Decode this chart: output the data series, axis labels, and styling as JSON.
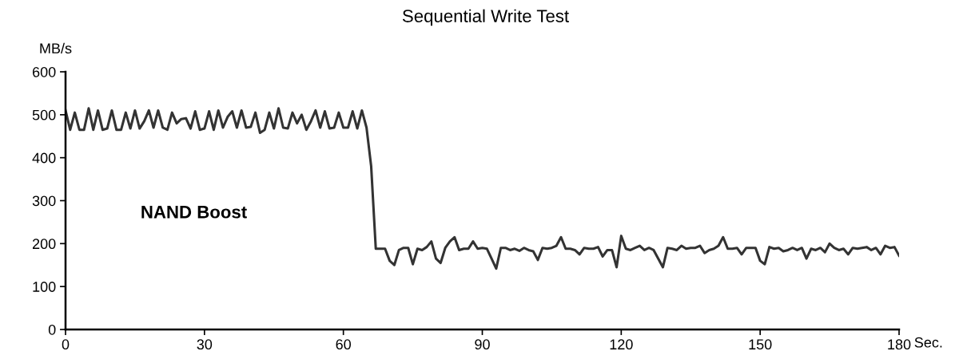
{
  "chart_data": {
    "type": "line",
    "title": "Sequential Write Test",
    "ylabel": "MB/s",
    "xlabel": "Sec.",
    "annotations": [
      "NAND Boost"
    ],
    "x": [
      0,
      1,
      2,
      3,
      4,
      5,
      6,
      7,
      8,
      9,
      10,
      11,
      12,
      13,
      14,
      15,
      16,
      17,
      18,
      19,
      20,
      21,
      22,
      23,
      24,
      25,
      26,
      27,
      28,
      29,
      30,
      31,
      32,
      33,
      34,
      35,
      36,
      37,
      38,
      39,
      40,
      41,
      42,
      43,
      44,
      45,
      46,
      47,
      48,
      49,
      50,
      51,
      52,
      53,
      54,
      55,
      56,
      57,
      58,
      59,
      60,
      61,
      62,
      63,
      64,
      65,
      66,
      67,
      68,
      69,
      70,
      71,
      72,
      73,
      74,
      75,
      76,
      77,
      78,
      79,
      80,
      81,
      82,
      83,
      84,
      85,
      86,
      87,
      88,
      89,
      90,
      91,
      92,
      93,
      94,
      95,
      96,
      97,
      98,
      99,
      100,
      101,
      102,
      103,
      104,
      105,
      106,
      107,
      108,
      109,
      110,
      111,
      112,
      113,
      114,
      115,
      116,
      117,
      118,
      119,
      120,
      121,
      122,
      123,
      124,
      125,
      126,
      127,
      128,
      129,
      130,
      131,
      132,
      133,
      134,
      135,
      136,
      137,
      138,
      139,
      140,
      141,
      142,
      143,
      144,
      145,
      146,
      147,
      148,
      149,
      150,
      151,
      152,
      153,
      154,
      155,
      156,
      157,
      158,
      159,
      160,
      161,
      162,
      163,
      164,
      165,
      166,
      167,
      168,
      169,
      170,
      171,
      172,
      173,
      174,
      175,
      176,
      177,
      178,
      179,
      180
    ],
    "series": [
      {
        "color": "#333333",
        "values": [
          510,
          465,
          505,
          465,
          465,
          515,
          465,
          510,
          465,
          468,
          510,
          465,
          465,
          505,
          468,
          510,
          468,
          485,
          510,
          470,
          510,
          470,
          465,
          505,
          480,
          490,
          492,
          468,
          508,
          465,
          468,
          508,
          465,
          510,
          470,
          495,
          508,
          470,
          510,
          470,
          472,
          505,
          458,
          465,
          505,
          468,
          515,
          470,
          468,
          505,
          480,
          500,
          465,
          485,
          510,
          470,
          508,
          468,
          470,
          505,
          470,
          470,
          508,
          468,
          510,
          470,
          380,
          188,
          188,
          188,
          160,
          150,
          185,
          190,
          190,
          152,
          188,
          185,
          192,
          205,
          165,
          155,
          190,
          205,
          215,
          185,
          188,
          188,
          205,
          188,
          190,
          188,
          165,
          142,
          190,
          190,
          185,
          188,
          183,
          190,
          185,
          182,
          162,
          190,
          188,
          190,
          195,
          215,
          188,
          188,
          185,
          175,
          190,
          188,
          188,
          192,
          170,
          185,
          185,
          145,
          218,
          188,
          185,
          190,
          195,
          185,
          190,
          185,
          165,
          145,
          190,
          188,
          185,
          195,
          188,
          190,
          190,
          195,
          178,
          185,
          188,
          195,
          215,
          188,
          188,
          190,
          175,
          190,
          190,
          190,
          160,
          152,
          192,
          188,
          190,
          182,
          185,
          190,
          185,
          190,
          165,
          188,
          185,
          190,
          180,
          200,
          190,
          185,
          188,
          175,
          190,
          188,
          190,
          192,
          185,
          190,
          175,
          195,
          190,
          192,
          172
        ]
      }
    ],
    "xlim": [
      0,
      180
    ],
    "xticks": [
      0,
      30,
      60,
      90,
      120,
      150,
      180
    ],
    "ylim": [
      0,
      600
    ],
    "yticks": [
      0,
      100,
      200,
      300,
      400,
      500,
      600
    ],
    "grid": false,
    "legend": false,
    "marker": "none",
    "line_style": "solid"
  }
}
